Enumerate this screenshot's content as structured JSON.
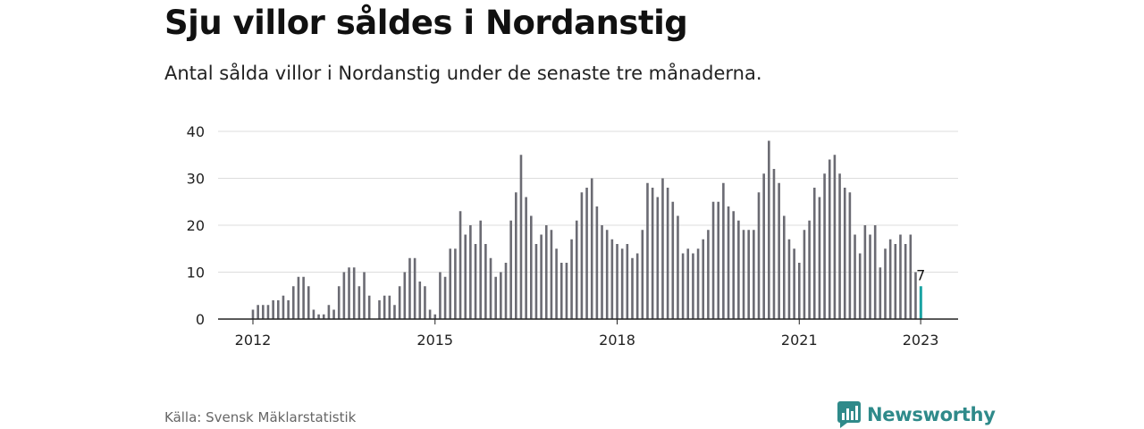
{
  "header": {
    "title": "Sju villor såldes i Nordanstig",
    "subtitle": "Antal sålda villor i Nordanstig under de senaste tre månaderna."
  },
  "footer": {
    "source": "Källa: Svensk Mäklarstatistik",
    "brand": "Newsworthy"
  },
  "colors": {
    "bar": "#6b6b73",
    "highlight": "#1aa3a3",
    "grid": "#dddddd",
    "axis": "#222222",
    "brand": "#2f8a8a"
  },
  "chart_data": {
    "type": "bar",
    "x_start": "2012-01",
    "x_end": "2023-01",
    "ylim": [
      0,
      40
    ],
    "yticks": [
      0,
      10,
      20,
      30,
      40
    ],
    "xticks": [
      {
        "label": "2012",
        "month": "2012-01"
      },
      {
        "label": "2015",
        "month": "2015-01"
      },
      {
        "label": "2018",
        "month": "2018-01"
      },
      {
        "label": "2021",
        "month": "2021-01"
      },
      {
        "label": "2023",
        "month": "2023-01"
      }
    ],
    "highlight": {
      "month": "2023-01",
      "value": 7,
      "label": "7"
    },
    "values": [
      2,
      3,
      3,
      3,
      4,
      4,
      5,
      4,
      7,
      9,
      9,
      7,
      2,
      1,
      1,
      3,
      2,
      7,
      10,
      11,
      11,
      7,
      10,
      5,
      0,
      4,
      5,
      5,
      3,
      7,
      10,
      13,
      13,
      8,
      7,
      2,
      1,
      10,
      9,
      15,
      15,
      23,
      18,
      20,
      16,
      21,
      16,
      13,
      9,
      10,
      12,
      21,
      27,
      35,
      26,
      22,
      16,
      18,
      20,
      19,
      15,
      12,
      12,
      17,
      21,
      27,
      28,
      30,
      24,
      20,
      19,
      17,
      16,
      15,
      16,
      13,
      14,
      19,
      29,
      28,
      26,
      30,
      28,
      25,
      22,
      14,
      15,
      14,
      15,
      17,
      19,
      25,
      25,
      29,
      24,
      23,
      21,
      19,
      19,
      19,
      27,
      31,
      38,
      32,
      29,
      22,
      17,
      15,
      12,
      19,
      21,
      28,
      26,
      31,
      34,
      35,
      31,
      28,
      27,
      18,
      14,
      20,
      18,
      20,
      11,
      15,
      17,
      16,
      18,
      16,
      18,
      10,
      7
    ]
  }
}
